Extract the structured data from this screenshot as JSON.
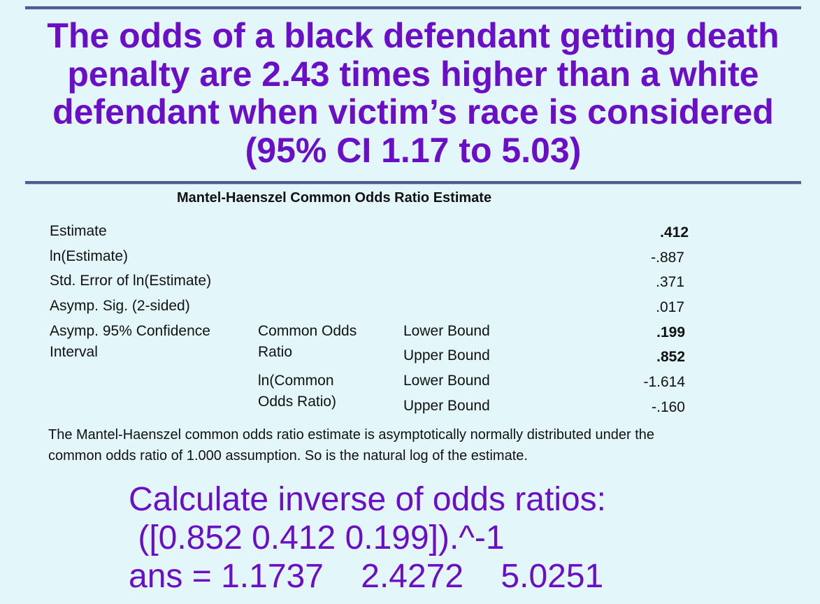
{
  "headline": "The odds of a black defendant getting death penalty are 2.43 times higher than a white defendant when victim’s race is considered (95% CI 1.17 to 5.03)",
  "table": {
    "title": "Mantel-Haenszel Common Odds Ratio Estimate",
    "rows": {
      "estimate": {
        "label": "Estimate",
        "value": ".412"
      },
      "ln_estimate": {
        "label": "ln(Estimate)",
        "value": "-.887"
      },
      "std_error": {
        "label": "Std. Error of ln(Estimate)",
        "value": ".371"
      },
      "asymp_sig": {
        "label": "Asymp. Sig. (2-sided)",
        "value": ".017"
      }
    },
    "ci": {
      "label_line1": "Asymp. 95% Confidence",
      "label_line2": "Interval",
      "common_odds_line1": "Common Odds",
      "common_odds_line2": "Ratio",
      "ln_common_line1": "ln(Common",
      "ln_common_line2": "Odds Ratio)",
      "lower_bound_label": "Lower Bound",
      "upper_bound_label": "Upper Bound",
      "common_lower": ".199",
      "common_upper": ".852",
      "ln_lower": "-1.614",
      "ln_upper": "-.160"
    },
    "footnote": "The Mantel-Haenszel common odds ratio estimate is asymptotically normally distributed under the common odds ratio of 1.000 assumption. So is the natural log of the estimate."
  },
  "calculation": {
    "line1": "Calculate inverse of odds ratios:",
    "line2": " ([0.852 0.412 0.199]).^-1",
    "line3": "ans = 1.1737    2.4272    5.0251"
  },
  "colors": {
    "accent": "#6a0fc7",
    "background": "#e3f6f9",
    "rule": "#4d5a96"
  }
}
